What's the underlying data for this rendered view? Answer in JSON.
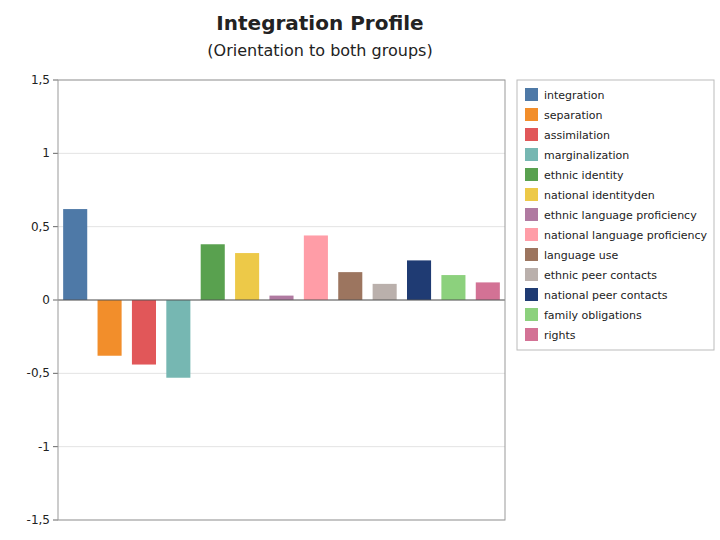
{
  "chart_data": {
    "type": "bar",
    "title": "Integration Profile",
    "subtitle": "(Orientation to both groups)",
    "categories": [
      "integration",
      "separation",
      "assimilation",
      "marginalization",
      "ethnic identity",
      "national identityden",
      "ethnic language proficiency",
      "national language proficiency",
      "language use",
      "ethnic peer contacts",
      "national peer contacts",
      "family obligations",
      "rights"
    ],
    "values": [
      0.62,
      -0.38,
      -0.44,
      -0.53,
      0.38,
      0.32,
      0.03,
      0.44,
      0.19,
      0.11,
      0.27,
      0.17,
      0.12
    ],
    "colors": [
      "#4e79a7",
      "#f28e2b",
      "#e15759",
      "#76b7b2",
      "#59a14f",
      "#edc948",
      "#b07aa1",
      "#ff9da7",
      "#9c755f",
      "#bab0ac",
      "#1f3b73",
      "#8cd17d",
      "#d37295"
    ],
    "ylim": [
      -1.5,
      1.5
    ],
    "yticks": [
      {
        "value": -1.5,
        "label": "-1,5"
      },
      -1,
      {
        "value": -0.5,
        "label": "-0,5"
      },
      0,
      {
        "value": 0.5,
        "label": "0,5"
      },
      1,
      {
        "value": 1.5,
        "label": "1,5"
      }
    ],
    "grid": true,
    "legend": "right",
    "tick_labels": "y"
  }
}
